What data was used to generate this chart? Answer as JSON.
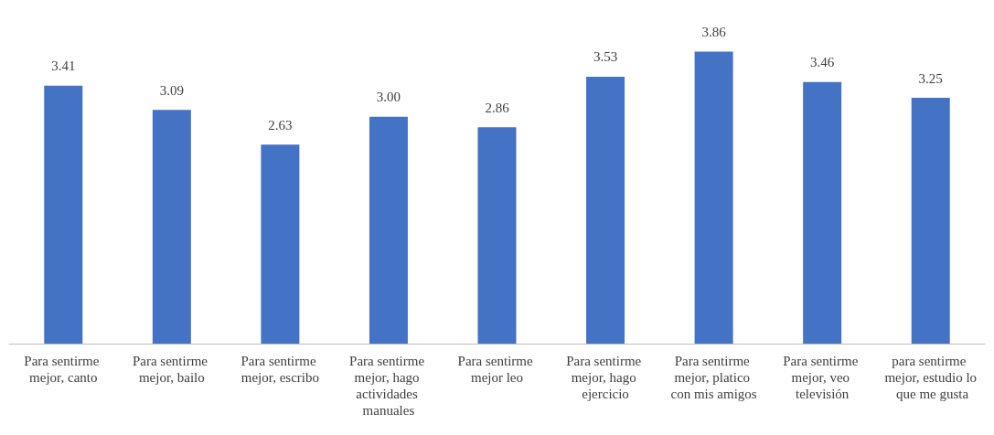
{
  "chart_data": {
    "type": "bar",
    "categories": [
      "Para sentirme mejor, canto",
      "Para sentirme mejor, bailo",
      "Para sentirme mejor, escribo",
      "Para sentirme mejor, hago actividades manuales",
      "Para sentirme mejor leo",
      "Para sentirme mejor, hago ejercicio",
      "Para sentirme mejor, platico con mis amigos",
      "Para sentirme mejor, veo televisión",
      "para sentirme mejor, estudio lo que me gusta"
    ],
    "values": [
      3.41,
      3.09,
      2.63,
      3.0,
      2.86,
      3.53,
      3.86,
      3.46,
      3.25
    ],
    "value_labels": [
      "3.41",
      "3.09",
      "2.63",
      "3.00",
      "2.86",
      "3.53",
      "3.86",
      "3.46",
      "3.25"
    ],
    "color": "#4472c4",
    "tick_labels": "x"
  }
}
